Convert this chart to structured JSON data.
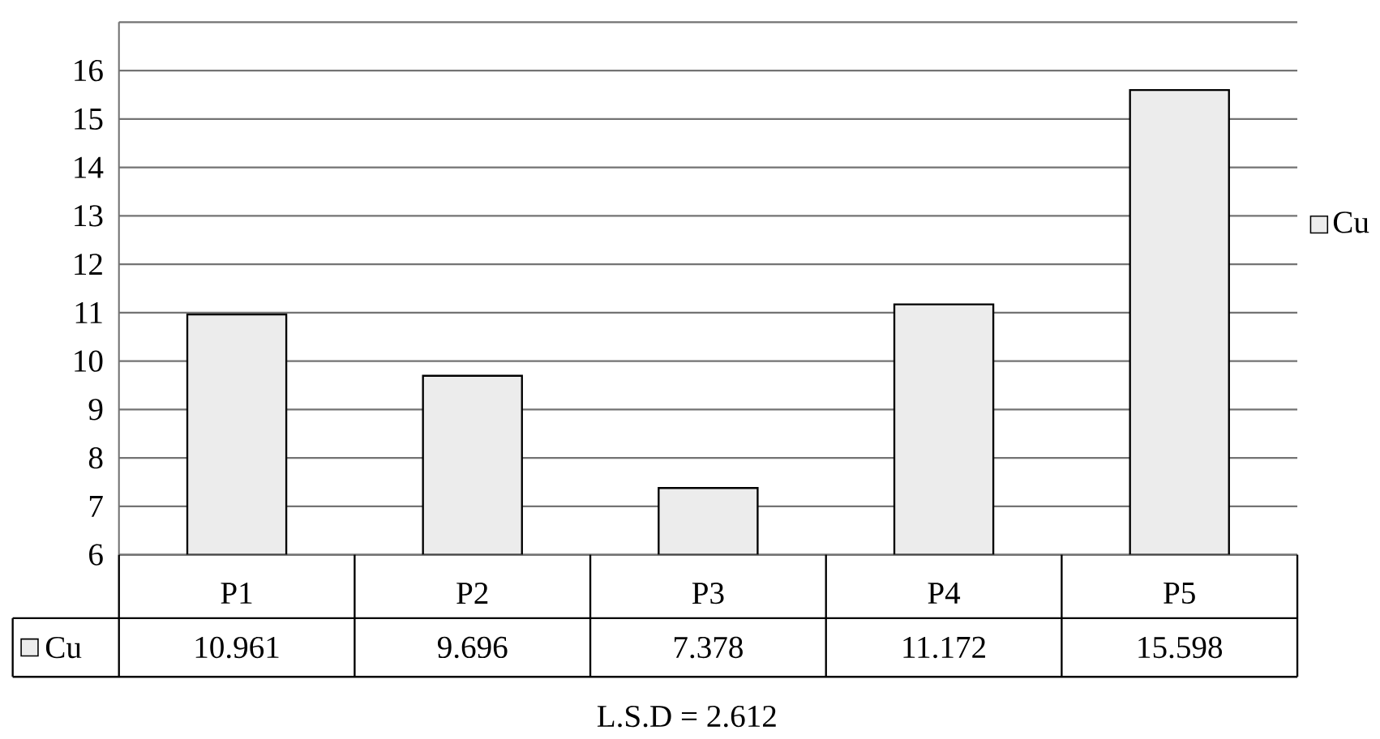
{
  "chart_data": {
    "type": "bar",
    "categories": [
      "P1",
      "P2",
      "P3",
      "P4",
      "P5"
    ],
    "series": [
      {
        "name": "Cu",
        "color": "#ececec",
        "values": [
          10.961,
          9.696,
          7.378,
          11.172,
          15.598
        ]
      }
    ],
    "ylim": [
      6,
      17
    ],
    "yticks": [
      6,
      7,
      8,
      9,
      10,
      11,
      12,
      13,
      14,
      15,
      16,
      {
        "value": 17,
        "label": null
      }
    ],
    "grid": "y",
    "legend": "right",
    "data_labels": true,
    "annotations": [
      "L.S.D = 2.612"
    ]
  }
}
